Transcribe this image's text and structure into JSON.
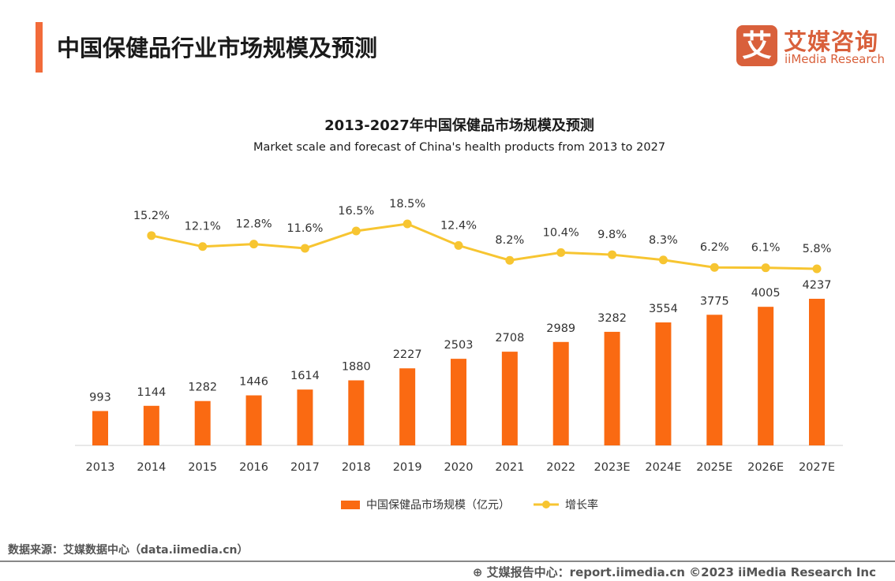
{
  "header": {
    "title": "中国保健品行业市场规模及预测"
  },
  "logo": {
    "mark": "艾",
    "cn": "艾媒咨询",
    "en": "iiMedia Research"
  },
  "chart_data": {
    "type": "bar+line",
    "title": "2013-2027年中国保健品市场规模及预测",
    "subtitle": "Market scale and forecast of China's health products from 2013 to 2027",
    "categories": [
      "2013",
      "2014",
      "2015",
      "2016",
      "2017",
      "2018",
      "2019",
      "2020",
      "2021",
      "2022",
      "2023E",
      "2024E",
      "2025E",
      "2026E",
      "2027E"
    ],
    "series": [
      {
        "name": "中国保健品市场规模（亿元）",
        "type": "bar",
        "color": "#fa6a12",
        "values": [
          993,
          1144,
          1282,
          1446,
          1614,
          1880,
          2227,
          2503,
          2708,
          2989,
          3282,
          3554,
          3775,
          4005,
          4237
        ],
        "labels": [
          "993",
          "1144",
          "1282",
          "1446",
          "1614",
          "1880",
          "2227",
          "2503",
          "2708",
          "2989",
          "3282",
          "3554",
          "3775",
          "4005",
          "4237"
        ]
      },
      {
        "name": "增长率",
        "type": "line",
        "color": "#f7c531",
        "values": [
          null,
          15.2,
          12.1,
          12.8,
          11.6,
          16.5,
          18.5,
          12.4,
          8.2,
          10.4,
          9.8,
          8.3,
          6.2,
          6.1,
          5.8
        ],
        "labels": [
          "",
          "15.2%",
          "12.1%",
          "12.8%",
          "11.6%",
          "16.5%",
          "18.5%",
          "12.4%",
          "8.2%",
          "10.4%",
          "9.8%",
          "8.3%",
          "6.2%",
          "6.1%",
          "5.8%"
        ]
      }
    ],
    "grid": false,
    "legend": "bottom"
  },
  "source": "数据来源：艾媒数据中心（data.iimedia.cn）",
  "footer": "艾媒报告中心：report.iimedia.cn ©2023  iiMedia Research  Inc"
}
